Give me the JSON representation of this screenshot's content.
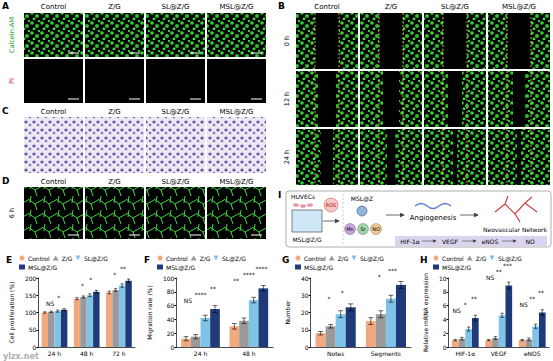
{
  "figure": {
    "panels": {
      "A": {
        "label": "A",
        "columns": [
          "Control",
          "Z/G",
          "SL@Z/G",
          "MSL@Z/G"
        ],
        "rows": [
          "Calcein-AM",
          "PI"
        ]
      },
      "B": {
        "label": "B",
        "columns": [
          "Control",
          "Z/G",
          "SL@Z/G",
          "MSL@Z/G"
        ],
        "rows": [
          "0 h",
          "12 h",
          "24 h"
        ]
      },
      "C": {
        "label": "C",
        "columns": [
          "Control",
          "Z/G",
          "SL@Z/G",
          "MSL@Z/G"
        ]
      },
      "D": {
        "label": "D",
        "columns": [
          "Control",
          "Z/G",
          "SL@Z/G",
          "MSL@Z/G"
        ],
        "rows": [
          "6 h"
        ]
      },
      "I": {
        "label": "I",
        "texts": {
          "cells": "HUVECs",
          "hydrogel": "MSL@Z/G",
          "ros": "ROS",
          "particle": "MSL@Z",
          "ions": [
            "Mn",
            "Sr",
            "NO"
          ],
          "process": "Angiogenesis",
          "result": "Neovascular Network",
          "pathway": [
            "HIF-1α",
            "VEGF",
            "eNOS",
            "NO"
          ]
        }
      }
    },
    "watermark": "ylzx.net"
  },
  "chart_data": [
    {
      "panel": "E",
      "type": "bar",
      "y_label": "Cell proliferation (%)",
      "categories": [
        "24 h",
        "48 h",
        "72 h"
      ],
      "series": [
        {
          "name": "Control",
          "color": "#f2a97f",
          "marker": "circle",
          "values": [
            100,
            140,
            158
          ],
          "errors": [
            2,
            3,
            4
          ]
        },
        {
          "name": "Z/G",
          "color": "#9a9a9a",
          "marker": "triangle",
          "values": [
            102,
            145,
            165
          ],
          "errors": [
            2,
            3,
            4
          ]
        },
        {
          "name": "SL@Z/G",
          "color": "#7fc4e8",
          "marker": "triangle-down",
          "values": [
            104,
            150,
            178
          ],
          "errors": [
            3,
            4,
            5
          ]
        },
        {
          "name": "MSL@Z/G",
          "color": "#1e3a78",
          "marker": "square",
          "values": [
            108,
            160,
            192
          ],
          "errors": [
            3,
            4,
            5
          ]
        }
      ],
      "ylim": [
        0,
        200
      ],
      "yticks": [
        0,
        50,
        100,
        150,
        200
      ],
      "grid": false,
      "legend": "top",
      "annotations": [
        {
          "category": "24 h",
          "text": "NS"
        },
        {
          "category": "24 h",
          "text": "*"
        },
        {
          "category": "48 h",
          "text": "*"
        },
        {
          "category": "48 h",
          "text": "*"
        },
        {
          "category": "72 h",
          "text": "*"
        },
        {
          "category": "72 h",
          "text": "**"
        }
      ]
    },
    {
      "panel": "F",
      "type": "bar",
      "y_label": "Migration rate (%)",
      "categories": [
        "24 h",
        "48 h"
      ],
      "series": [
        {
          "name": "Control",
          "color": "#f2a97f",
          "marker": "circle",
          "values": [
            12,
            30
          ],
          "errors": [
            3,
            4
          ]
        },
        {
          "name": "Z/G",
          "color": "#9a9a9a",
          "marker": "triangle",
          "values": [
            15,
            38
          ],
          "errors": [
            3,
            4
          ]
        },
        {
          "name": "SL@Z/G",
          "color": "#7fc4e8",
          "marker": "triangle-down",
          "values": [
            42,
            68
          ],
          "errors": [
            4,
            4
          ]
        },
        {
          "name": "MSL@Z/G",
          "color": "#1e3a78",
          "marker": "square",
          "values": [
            55,
            85
          ],
          "errors": [
            5,
            4
          ]
        }
      ],
      "ylim": [
        0,
        100
      ],
      "yticks": [
        0,
        20,
        40,
        60,
        80,
        100
      ],
      "grid": false,
      "legend": "top",
      "annotations": [
        {
          "category": "24 h",
          "text": "NS"
        },
        {
          "category": "24 h",
          "text": "****"
        },
        {
          "category": "24 h",
          "text": "**"
        },
        {
          "category": "48 h",
          "text": "**"
        },
        {
          "category": "48 h",
          "text": "****"
        },
        {
          "category": "48 h",
          "text": "****"
        }
      ]
    },
    {
      "panel": "G",
      "type": "bar",
      "y_label": "Number",
      "categories": [
        "Notes",
        "Segments"
      ],
      "series": [
        {
          "name": "Control",
          "color": "#f2a97f",
          "marker": "circle",
          "values": [
            8,
            15
          ],
          "errors": [
            1,
            2
          ]
        },
        {
          "name": "Z/G",
          "color": "#9a9a9a",
          "marker": "triangle",
          "values": [
            12,
            19
          ],
          "errors": [
            1,
            2
          ]
        },
        {
          "name": "SL@Z/G",
          "color": "#7fc4e8",
          "marker": "triangle-down",
          "values": [
            19,
            28
          ],
          "errors": [
            2,
            2
          ]
        },
        {
          "name": "MSL@Z/G",
          "color": "#1e3a78",
          "marker": "square",
          "values": [
            23,
            36
          ],
          "errors": [
            2,
            2
          ]
        }
      ],
      "ylim": [
        0,
        40
      ],
      "yticks": [
        0,
        10,
        20,
        30,
        40
      ],
      "grid": false,
      "legend": "top",
      "annotations": [
        {
          "category": "Notes",
          "text": "*"
        },
        {
          "category": "Notes",
          "text": "*"
        },
        {
          "category": "Segments",
          "text": "*"
        },
        {
          "category": "Segments",
          "text": "***"
        }
      ]
    },
    {
      "panel": "H",
      "type": "bar",
      "y_label": "Relative mRNA expression",
      "categories": [
        "HIF-1α",
        "VEGF",
        "eNOS"
      ],
      "series": [
        {
          "name": "Control",
          "color": "#f2a97f",
          "marker": "circle",
          "values": [
            1,
            1,
            1
          ],
          "errors": [
            0.1,
            0.1,
            0.1
          ]
        },
        {
          "name": "Z/G",
          "color": "#9a9a9a",
          "marker": "triangle",
          "values": [
            1.2,
            1.3,
            1.1
          ],
          "errors": [
            0.2,
            0.2,
            0.2
          ]
        },
        {
          "name": "SL@Z/G",
          "color": "#7fc4e8",
          "marker": "triangle-down",
          "values": [
            2.6,
            4.6,
            3.0
          ],
          "errors": [
            0.3,
            0.3,
            0.3
          ]
        },
        {
          "name": "MSL@Z/G",
          "color": "#1e3a78",
          "marker": "square",
          "values": [
            4.2,
            8.9,
            5.0
          ],
          "errors": [
            0.4,
            0.5,
            0.4
          ]
        }
      ],
      "ylim": [
        0,
        10
      ],
      "yticks": [
        0,
        2,
        4,
        6,
        8,
        10
      ],
      "grid": false,
      "legend": "top",
      "annotations": [
        {
          "category": "HIF-1α",
          "text": "NS"
        },
        {
          "category": "HIF-1α",
          "text": "*"
        },
        {
          "category": "HIF-1α",
          "text": "**"
        },
        {
          "category": "VEGF",
          "text": "NS"
        },
        {
          "category": "VEGF",
          "text": "**"
        },
        {
          "category": "VEGF",
          "text": "***"
        },
        {
          "category": "eNOS",
          "text": "NS"
        },
        {
          "category": "eNOS",
          "text": "**"
        },
        {
          "category": "eNOS",
          "text": "**"
        }
      ]
    }
  ]
}
